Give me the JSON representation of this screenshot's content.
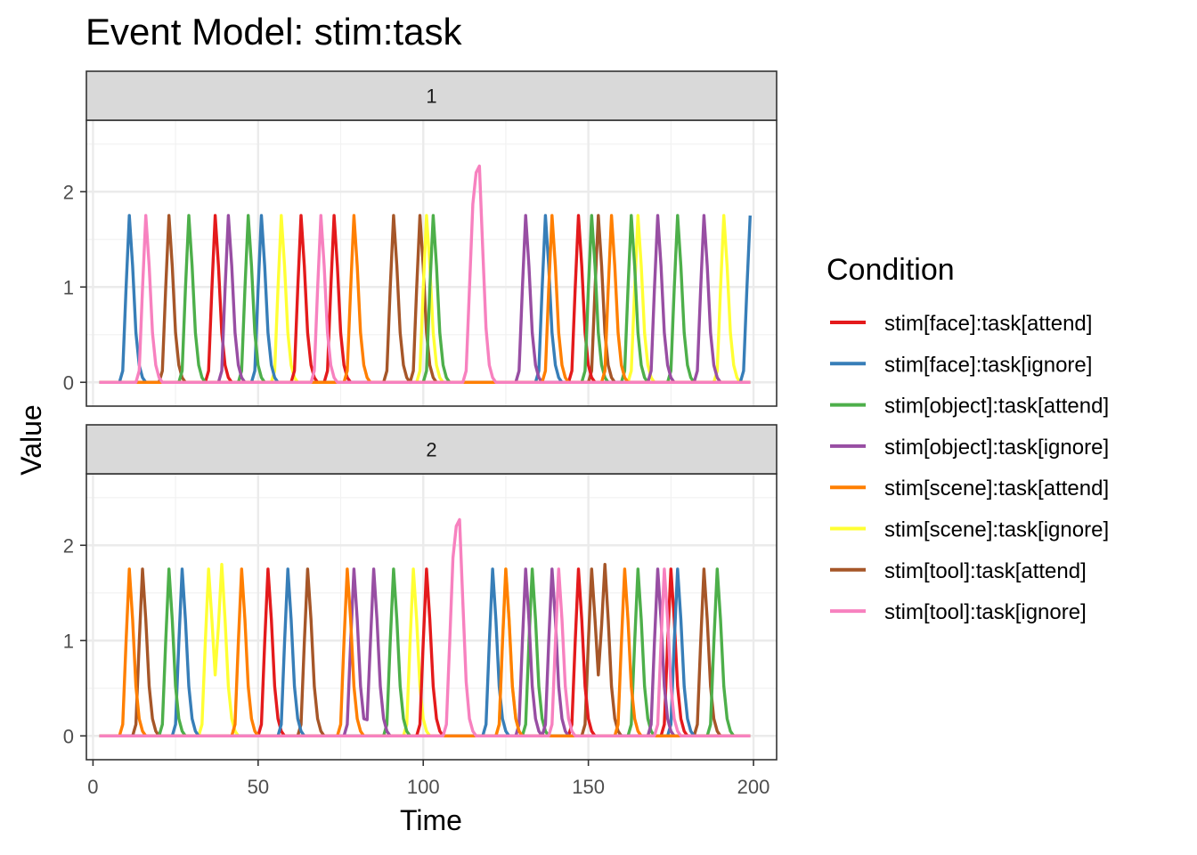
{
  "chart_data": {
    "type": "line",
    "title": "Event Model: stim:task",
    "xlabel": "Time",
    "ylabel": "Value",
    "xlim": [
      -2,
      207
    ],
    "x_ticks": [
      0,
      50,
      100,
      150,
      200
    ],
    "ylim": [
      -0.25,
      2.75
    ],
    "y_ticks": [
      0,
      1,
      2
    ],
    "grid": true,
    "legend": {
      "title": "Condition",
      "position": "right"
    },
    "series": [
      {
        "name": "stim[face]:task[attend]",
        "color": "#E41A1C"
      },
      {
        "name": "stim[face]:task[ignore]",
        "color": "#377EB8"
      },
      {
        "name": "stim[object]:task[attend]",
        "color": "#4DAF4A"
      },
      {
        "name": "stim[object]:task[ignore]",
        "color": "#984EA3"
      },
      {
        "name": "stim[scene]:task[attend]",
        "color": "#FF7F00"
      },
      {
        "name": "stim[scene]:task[ignore]",
        "color": "#FFFF33"
      },
      {
        "name": "stim[tool]:task[attend]",
        "color": "#A65628"
      },
      {
        "name": "stim[tool]:task[ignore]",
        "color": "#F781BF"
      }
    ],
    "panels": [
      {
        "label": "1",
        "peaks": [
          {
            "series": 1,
            "x": [
              11,
              199
            ]
          },
          {
            "series": 7,
            "x": [
              16,
              69,
              115,
              117
            ]
          },
          {
            "series": 6,
            "x": [
              23,
              91,
              99
            ]
          },
          {
            "series": 2,
            "x": [
              29,
              47,
              103,
              151,
              177
            ]
          },
          {
            "series": 0,
            "x": [
              37,
              63,
              73,
              147
            ]
          },
          {
            "series": 3,
            "x": [
              41,
              131,
              171,
              185
            ]
          },
          {
            "series": 1,
            "x": [
              51,
              137
            ]
          },
          {
            "series": 5,
            "x": [
              57,
              101,
              191
            ]
          },
          {
            "series": 4,
            "x": [
              79,
              139,
              157
            ]
          },
          {
            "series": 6,
            "x": [
              153
            ]
          },
          {
            "series": 2,
            "x": [
              163
            ]
          },
          {
            "series": 5,
            "x": [
              165
            ]
          }
        ]
      },
      {
        "label": "2",
        "peaks": [
          {
            "series": 4,
            "x": [
              11,
              45,
              125,
              161
            ]
          },
          {
            "series": 6,
            "x": [
              15,
              65,
              151,
              185
            ]
          },
          {
            "series": 2,
            "x": [
              23,
              91,
              133,
              189
            ]
          },
          {
            "series": 1,
            "x": [
              27,
              121,
              177
            ]
          },
          {
            "series": 5,
            "x": [
              35,
              39,
              97,
              125
            ]
          },
          {
            "series": 0,
            "x": [
              53,
              101,
              147,
              175
            ]
          },
          {
            "series": 1,
            "x": [
              59
            ]
          },
          {
            "series": 4,
            "x": [
              77
            ]
          },
          {
            "series": 3,
            "x": [
              79,
              85,
              131,
              139,
              171
            ]
          },
          {
            "series": 7,
            "x": [
              109,
              111,
              141,
              173
            ]
          },
          {
            "series": 6,
            "x": [
              155
            ]
          },
          {
            "series": 2,
            "x": [
              165
            ]
          }
        ]
      }
    ]
  }
}
